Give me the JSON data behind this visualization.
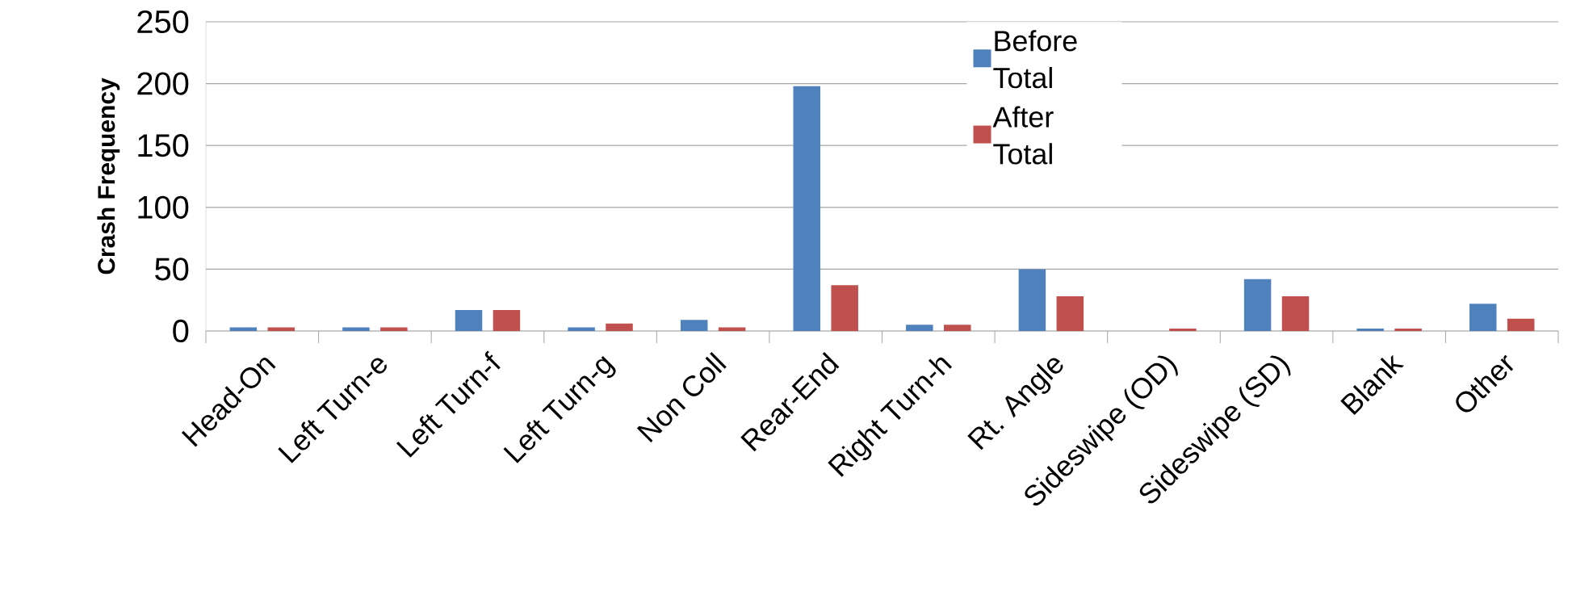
{
  "chart_data": {
    "type": "bar",
    "ylabel": "Crash Frequency",
    "categories": [
      "Head-On",
      "Left Turn-e",
      "Left Turn-f",
      "Left Turn-g",
      "Non Coll",
      "Rear-End",
      "Right Turn-h",
      "Rt. Angle",
      "Sideswipe (OD)",
      "Sideswipe (SD)",
      "Blank",
      "Other"
    ],
    "series": [
      {
        "name": "Before Total",
        "color": "#4f81bd",
        "values": [
          3,
          3,
          17,
          3,
          9,
          198,
          5,
          50,
          0,
          42,
          2,
          22
        ]
      },
      {
        "name": "After Total",
        "color": "#c0504d",
        "values": [
          3,
          3,
          17,
          6,
          3,
          37,
          5,
          28,
          2,
          28,
          2,
          10
        ]
      }
    ],
    "ylim": [
      0,
      250
    ],
    "yticks": [
      0,
      50,
      100,
      150,
      200,
      250
    ],
    "grid": "y",
    "legend": "top"
  }
}
